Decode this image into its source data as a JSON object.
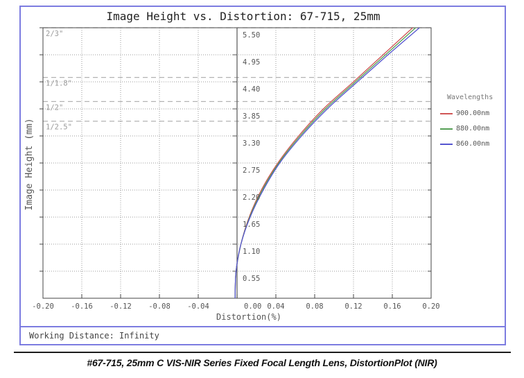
{
  "figure": {
    "title": "Image Height vs. Distortion: 67-715, 25mm",
    "working_distance_label": "Working Distance: Infinity",
    "border_color": "#7c7ce0"
  },
  "caption": {
    "text": "#67-715, 25mm C VIS-NIR Series Fixed Focal Length Lens, DistortionPlot (NIR)"
  },
  "chart_data": {
    "type": "line",
    "title": "Image Height vs. Distortion: 67-715, 25mm",
    "xlabel": "Distortion(%)",
    "ylabel": "Image Height (mm)",
    "xlim": [
      -0.2,
      0.2
    ],
    "ylim": [
      0,
      5.5
    ],
    "x_ticks": [
      -0.2,
      -0.16,
      -0.12,
      -0.08,
      -0.04,
      0.0,
      0.04,
      0.08,
      0.12,
      0.16,
      0.2
    ],
    "y_ticks": [
      0.55,
      1.1,
      1.65,
      2.2,
      2.75,
      3.3,
      3.85,
      4.4,
      4.95,
      5.5
    ],
    "grid": true,
    "legend_title": "Wavelengths",
    "legend_position": "right-outside",
    "image_heights_mm": [
      0.0,
      0.55,
      1.1,
      1.65,
      2.2,
      2.75,
      3.3,
      3.85,
      4.4,
      4.95,
      5.5
    ],
    "series": [
      {
        "name": "900.00nm",
        "color": "#d05555",
        "distortion_pct": [
          -0.002,
          -0.001,
          0.004,
          0.0125,
          0.025,
          0.042,
          0.0635,
          0.089,
          0.12,
          0.1505,
          0.181
        ]
      },
      {
        "name": "880.00nm",
        "color": "#55a055",
        "distortion_pct": [
          -0.002,
          -0.001,
          0.004,
          0.013,
          0.026,
          0.043,
          0.065,
          0.091,
          0.122,
          0.153,
          0.184
        ]
      },
      {
        "name": "860.00nm",
        "color": "#5555d0",
        "distortion_pct": [
          -0.002,
          -0.001,
          0.004,
          0.0135,
          0.027,
          0.044,
          0.0665,
          0.093,
          0.124,
          0.1555,
          0.188
        ]
      }
    ],
    "sensor_format_lines": [
      {
        "label": "2/3\"",
        "image_height_mm": 5.5
      },
      {
        "label": "1/1.8\"",
        "image_height_mm": 4.49
      },
      {
        "label": "1/2\"",
        "image_height_mm": 4.0
      },
      {
        "label": "1/2.5\"",
        "image_height_mm": 3.6
      }
    ]
  }
}
